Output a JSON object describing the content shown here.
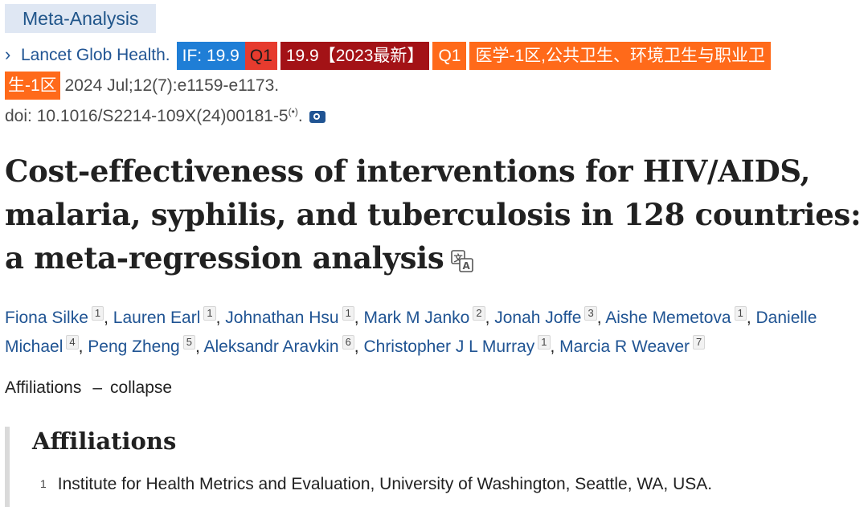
{
  "publication_type": "Meta-Analysis",
  "citation": {
    "journal": "Lancet Glob Health.",
    "badges": {
      "if": "IF: 19.9",
      "q1": "Q1",
      "if_2023": "19.9【2023最新】",
      "q1_b": "Q1",
      "cas_line1": "医学-1区,公共卫生、环境卫生与职业卫",
      "cas_line2": "生-1区"
    },
    "date_volume": "2024 Jul;12(7):e1159-e1173.",
    "doi": "doi: 10.1016/S2214-109X(24)00181-5",
    "doi_suffix": ".",
    "colors": {
      "link": "#205493",
      "if_badge": "#1f7ed6",
      "q1_badge": "#e63b2e",
      "latest_badge": "#a31216",
      "cas_badge": "#ff6a1a"
    }
  },
  "title": "Cost-effectiveness of interventions for HIV/AIDS, malaria, syphilis, and tuberculosis in 128 countries: a meta-regression analysis",
  "authors": [
    {
      "name": "Fiona Silke",
      "aff": "1"
    },
    {
      "name": "Lauren Earl",
      "aff": "1"
    },
    {
      "name": "Johnathan Hsu",
      "aff": "1"
    },
    {
      "name": "Mark M Janko",
      "aff": "2"
    },
    {
      "name": "Jonah Joffe",
      "aff": "3"
    },
    {
      "name": "Aishe Memetova",
      "aff": "1"
    },
    {
      "name": "Danielle Michael",
      "aff": "4"
    },
    {
      "name": "Peng Zheng",
      "aff": "5"
    },
    {
      "name": "Aleksandr Aravkin",
      "aff": "6"
    },
    {
      "name": "Christopher J L Murray",
      "aff": "1"
    },
    {
      "name": "Marcia R Weaver",
      "aff": "7"
    }
  ],
  "affiliations_toggle": {
    "label": "Affiliations",
    "dash": "–",
    "action": "collapse"
  },
  "affiliations": {
    "heading": "Affiliations",
    "items": [
      {
        "num": "1",
        "text": "Institute for Health Metrics and Evaluation, University of Washington, Seattle, WA, USA."
      }
    ]
  },
  "icons": [
    "chevron-right-icon",
    "podcast-icon",
    "camera-icon",
    "translate-icon"
  ]
}
